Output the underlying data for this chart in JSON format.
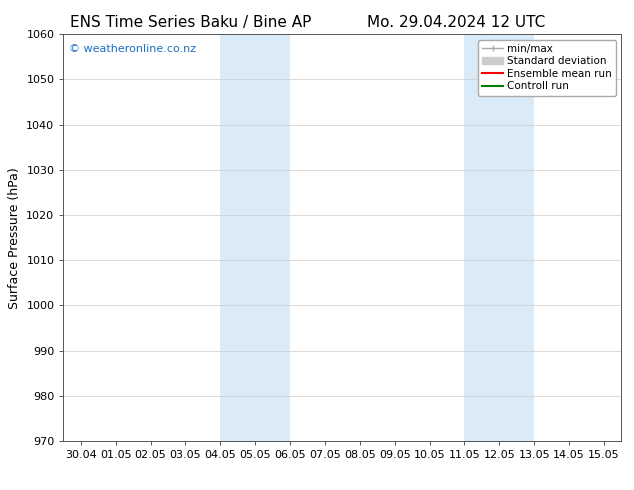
{
  "title_left": "ENS Time Series Baku / Bine AP",
  "title_right": "Mo. 29.04.2024 12 UTC",
  "ylabel": "Surface Pressure (hPa)",
  "xlabel_ticks": [
    "30.04",
    "01.05",
    "02.05",
    "03.05",
    "04.05",
    "05.05",
    "06.05",
    "07.05",
    "08.05",
    "09.05",
    "10.05",
    "11.05",
    "12.05",
    "13.05",
    "14.05",
    "15.05"
  ],
  "ylim": [
    970,
    1060
  ],
  "yticks": [
    970,
    980,
    990,
    1000,
    1010,
    1020,
    1030,
    1040,
    1050,
    1060
  ],
  "background_color": "#ffffff",
  "plot_bg_color": "#ffffff",
  "shaded_bands": [
    {
      "xstart": 4.0,
      "xend": 6.0,
      "color": "#daeaf7"
    },
    {
      "xstart": 11.0,
      "xend": 13.0,
      "color": "#daeaf7"
    }
  ],
  "watermark_text": "© weatheronline.co.nz",
  "watermark_color": "#1a6fc4",
  "legend_entries": [
    {
      "label": "min/max",
      "color": "#aaaaaa",
      "lw": 1.0
    },
    {
      "label": "Standard deviation",
      "color": "#cccccc",
      "lw": 6
    },
    {
      "label": "Ensemble mean run",
      "color": "#ff0000",
      "lw": 1.5
    },
    {
      "label": "Controll run",
      "color": "#008000",
      "lw": 1.5
    }
  ],
  "font_family": "DejaVu Sans",
  "title_fontsize": 11,
  "tick_fontsize": 8,
  "ylabel_fontsize": 9,
  "watermark_fontsize": 8,
  "legend_fontsize": 7.5
}
